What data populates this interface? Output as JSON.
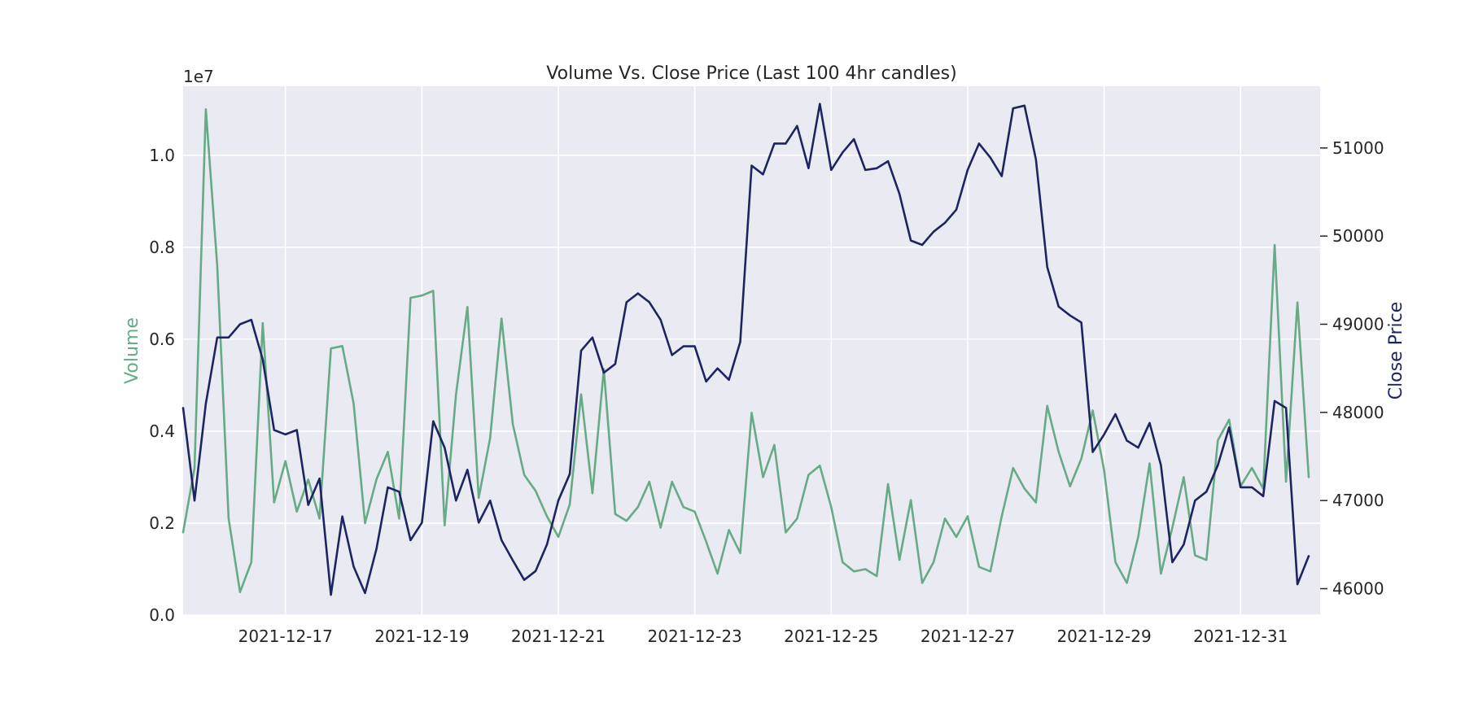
{
  "chart_data": {
    "type": "line",
    "title": "Volume Vs. Close Price (Last 100 4hr candles)",
    "x_start": "2021-12-15T12:00",
    "x_end": "2022-01-01T04:00",
    "x_step_hours": 4,
    "x_ticks": [
      "2021-12-17",
      "2021-12-19",
      "2021-12-21",
      "2021-12-23",
      "2021-12-25",
      "2021-12-27",
      "2021-12-29",
      "2021-12-31"
    ],
    "left_axis": {
      "label": "Volume",
      "offset_text": "1e7",
      "scale": 10000000,
      "ylim": [
        0,
        11500000
      ],
      "ticks": [
        0,
        2000000,
        4000000,
        6000000,
        8000000,
        10000000
      ],
      "tick_labels": [
        "0.0",
        "0.2",
        "0.4",
        "0.6",
        "0.8",
        "1.0"
      ],
      "color": "#66ab86"
    },
    "right_axis": {
      "label": "Close Price",
      "ylim": [
        45700,
        51700
      ],
      "ticks": [
        46000,
        47000,
        48000,
        49000,
        50000,
        51000
      ],
      "tick_labels": [
        "46000",
        "47000",
        "48000",
        "49000",
        "50000",
        "51000"
      ],
      "color": "#1d2462"
    },
    "grid": true,
    "legend": "none",
    "series": [
      {
        "axis": "left",
        "color": "#66ab86",
        "values": [
          1800000,
          3200000,
          11000000,
          7600000,
          2100000,
          500000,
          1150000,
          6350000,
          2450000,
          3350000,
          2250000,
          2950000,
          2100000,
          5800000,
          5850000,
          4600000,
          2000000,
          2950000,
          3550000,
          2100000,
          6900000,
          6950000,
          7050000,
          1950000,
          4800000,
          6700000,
          2550000,
          3850000,
          6450000,
          4150000,
          3050000,
          2700000,
          2150000,
          1700000,
          2400000,
          4800000,
          2650000,
          5350000,
          2200000,
          2050000,
          2350000,
          2900000,
          1900000,
          2900000,
          2350000,
          2250000,
          1600000,
          900000,
          1850000,
          1350000,
          4400000,
          3000000,
          3700000,
          1800000,
          2100000,
          3050000,
          3250000,
          2350000,
          1150000,
          950000,
          1000000,
          850000,
          2850000,
          1200000,
          2500000,
          700000,
          1150000,
          2100000,
          1700000,
          2150000,
          1050000,
          950000,
          2150000,
          3200000,
          2750000,
          2450000,
          4550000,
          3550000,
          2800000,
          3400000,
          4450000,
          3150000,
          1150000,
          700000,
          1700000,
          3300000,
          900000,
          1900000,
          3000000,
          1300000,
          1200000,
          3800000,
          4250000,
          2800000,
          3200000,
          2750000,
          8050000,
          2900000,
          6800000,
          3000000
        ]
      },
      {
        "axis": "right",
        "color": "#1d2462",
        "values": [
          48050,
          47000,
          48100,
          48850,
          48850,
          49000,
          49050,
          48600,
          47800,
          47750,
          47800,
          46950,
          47250,
          45930,
          46820,
          46250,
          45950,
          46450,
          47150,
          47100,
          46550,
          46750,
          47900,
          47600,
          47000,
          47350,
          46750,
          47000,
          46550,
          46320,
          46100,
          46200,
          46500,
          47000,
          47300,
          48700,
          48850,
          48450,
          48550,
          49250,
          49350,
          49250,
          49050,
          48650,
          48750,
          48750,
          48350,
          48500,
          48370,
          48800,
          50800,
          50700,
          51050,
          51050,
          51250,
          50770,
          51500,
          50750,
          50950,
          51100,
          50750,
          50770,
          50850,
          50480,
          49950,
          49900,
          50050,
          50150,
          50300,
          50750,
          51050,
          50890,
          50680,
          51450,
          51480,
          50870,
          49650,
          49200,
          49100,
          49020,
          47550,
          47750,
          47980,
          47680,
          47600,
          47880,
          47400,
          46300,
          46500,
          47000,
          47100,
          47400,
          47830,
          47150,
          47150,
          47050,
          48130,
          48050,
          46050,
          46370
        ]
      }
    ]
  }
}
